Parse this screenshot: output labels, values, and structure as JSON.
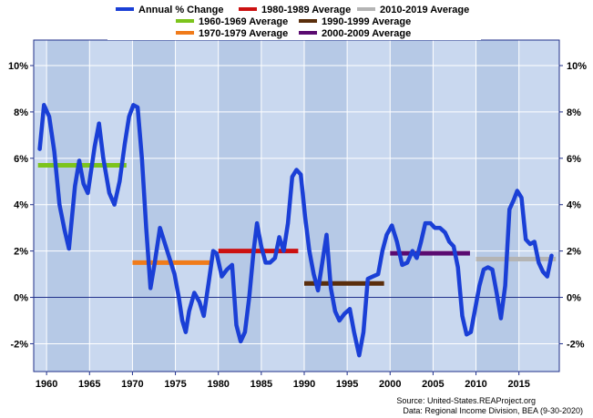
{
  "chart_data": {
    "type": "line",
    "title": "",
    "xlabel": "",
    "ylabel": "",
    "x_range": [
      1958.5,
      2019.7
    ],
    "ylim": [
      -3.2,
      11.1
    ],
    "y_ticks": [
      -2,
      0,
      2,
      4,
      6,
      8,
      10
    ],
    "y_tick_labels": [
      "-2%",
      "0%",
      "2%",
      "4%",
      "6%",
      "8%",
      "10%"
    ],
    "x_ticks": [
      1960,
      1965,
      1970,
      1975,
      1980,
      1985,
      1990,
      1995,
      2000,
      2005,
      2010,
      2015
    ],
    "x_tick_labels": [
      "1960",
      "1965",
      "1970",
      "1975",
      "1980",
      "1985",
      "1990",
      "1995",
      "2000",
      "2005",
      "2010",
      "2015"
    ],
    "grid": true,
    "legend_position": "top",
    "legend": [
      {
        "label": "Annual % Change",
        "color": "#1a3fd6"
      },
      {
        "label": "1980-1989 Average",
        "color": "#cc1111"
      },
      {
        "label": "2010-2019 Average",
        "color": "#b4b4b4"
      },
      {
        "label": "1960-1969 Average",
        "color": "#7cc41c"
      },
      {
        "label": "1990-1999 Average",
        "color": "#5a2e0c"
      },
      {
        "label": "1970-1979 Average",
        "color": "#f07b1a"
      },
      {
        "label": "2000-2009 Average",
        "color": "#5a0a70"
      }
    ],
    "series": [
      {
        "name": "Annual % Change",
        "color": "#1a3fd6",
        "points": [
          [
            1959.2,
            6.4
          ],
          [
            1959.7,
            8.3
          ],
          [
            1960.3,
            7.8
          ],
          [
            1960.9,
            6.3
          ],
          [
            1961.5,
            4.0
          ],
          [
            1962.1,
            2.9
          ],
          [
            1962.6,
            2.1
          ],
          [
            1963.3,
            4.8
          ],
          [
            1963.8,
            5.9
          ],
          [
            1964.3,
            4.9
          ],
          [
            1964.8,
            4.5
          ],
          [
            1965.6,
            6.5
          ],
          [
            1966.1,
            7.5
          ],
          [
            1966.6,
            6.0
          ],
          [
            1967.3,
            4.5
          ],
          [
            1967.9,
            4.0
          ],
          [
            1968.5,
            5.0
          ],
          [
            1969.1,
            6.6
          ],
          [
            1969.6,
            7.8
          ],
          [
            1970.1,
            8.3
          ],
          [
            1970.6,
            8.2
          ],
          [
            1971.1,
            6.0
          ],
          [
            1971.6,
            3.0
          ],
          [
            1972.1,
            0.4
          ],
          [
            1972.6,
            1.5
          ],
          [
            1973.2,
            3.0
          ],
          [
            1973.8,
            2.3
          ],
          [
            1974.3,
            1.7
          ],
          [
            1974.9,
            1.0
          ],
          [
            1975.4,
            0.0
          ],
          [
            1975.8,
            -1.0
          ],
          [
            1976.2,
            -1.5
          ],
          [
            1976.6,
            -0.6
          ],
          [
            1977.2,
            0.2
          ],
          [
            1977.8,
            -0.2
          ],
          [
            1978.3,
            -0.8
          ],
          [
            1978.9,
            0.7
          ],
          [
            1979.4,
            2.0
          ],
          [
            1979.8,
            1.9
          ],
          [
            1980.4,
            0.9
          ],
          [
            1981.0,
            1.2
          ],
          [
            1981.6,
            1.4
          ],
          [
            1982.1,
            -1.2
          ],
          [
            1982.6,
            -1.9
          ],
          [
            1983.1,
            -1.5
          ],
          [
            1983.6,
            0.0
          ],
          [
            1984.1,
            2.0
          ],
          [
            1984.5,
            3.2
          ],
          [
            1985.0,
            2.2
          ],
          [
            1985.5,
            1.5
          ],
          [
            1986.0,
            1.5
          ],
          [
            1986.6,
            1.7
          ],
          [
            1987.1,
            2.6
          ],
          [
            1987.6,
            2.0
          ],
          [
            1988.1,
            3.2
          ],
          [
            1988.6,
            5.2
          ],
          [
            1989.1,
            5.5
          ],
          [
            1989.6,
            5.3
          ],
          [
            1990.1,
            3.5
          ],
          [
            1990.6,
            2.0
          ],
          [
            1991.1,
            1.0
          ],
          [
            1991.6,
            0.3
          ],
          [
            1992.1,
            1.5
          ],
          [
            1992.6,
            2.7
          ],
          [
            1993.1,
            0.4
          ],
          [
            1993.6,
            -0.6
          ],
          [
            1994.1,
            -1.0
          ],
          [
            1994.7,
            -0.7
          ],
          [
            1995.3,
            -0.5
          ],
          [
            1995.8,
            -1.5
          ],
          [
            1996.4,
            -2.5
          ],
          [
            1996.9,
            -1.5
          ],
          [
            1997.4,
            0.8
          ],
          [
            1998.0,
            0.9
          ],
          [
            1998.6,
            1.0
          ],
          [
            1999.1,
            2.0
          ],
          [
            1999.6,
            2.7
          ],
          [
            2000.2,
            3.1
          ],
          [
            2000.8,
            2.4
          ],
          [
            2001.4,
            1.4
          ],
          [
            2002.0,
            1.5
          ],
          [
            2002.6,
            2.0
          ],
          [
            2003.1,
            1.7
          ],
          [
            2003.6,
            2.4
          ],
          [
            2004.1,
            3.2
          ],
          [
            2004.7,
            3.2
          ],
          [
            2005.2,
            3.0
          ],
          [
            2005.8,
            3.0
          ],
          [
            2006.4,
            2.8
          ],
          [
            2006.9,
            2.4
          ],
          [
            2007.4,
            2.2
          ],
          [
            2007.9,
            1.3
          ],
          [
            2008.4,
            -0.8
          ],
          [
            2008.9,
            -1.6
          ],
          [
            2009.4,
            -1.5
          ],
          [
            2009.9,
            -0.5
          ],
          [
            2010.4,
            0.5
          ],
          [
            2010.9,
            1.2
          ],
          [
            2011.4,
            1.3
          ],
          [
            2011.9,
            1.2
          ],
          [
            2012.4,
            0.2
          ],
          [
            2012.9,
            -0.9
          ],
          [
            2013.4,
            0.5
          ],
          [
            2013.9,
            3.8
          ],
          [
            2014.4,
            4.2
          ],
          [
            2014.8,
            4.6
          ],
          [
            2015.3,
            4.3
          ],
          [
            2015.8,
            2.5
          ],
          [
            2016.3,
            2.3
          ],
          [
            2016.8,
            2.4
          ],
          [
            2017.3,
            1.5
          ],
          [
            2017.8,
            1.1
          ],
          [
            2018.3,
            0.9
          ],
          [
            2018.8,
            1.8
          ]
        ]
      }
    ],
    "averages": [
      {
        "name": "1960-1969 Average",
        "color": "#7cc41c",
        "x": [
          1959.0,
          1969.3
        ],
        "y": 5.7
      },
      {
        "name": "1970-1979 Average",
        "color": "#f07b1a",
        "x": [
          1970.0,
          1979.3
        ],
        "y": 1.5
      },
      {
        "name": "1980-1989 Average",
        "color": "#cc1111",
        "x": [
          1980.0,
          1989.3
        ],
        "y": 2.0
      },
      {
        "name": "1990-1999 Average",
        "color": "#5a2e0c",
        "x": [
          1990.0,
          1999.3
        ],
        "y": 0.6
      },
      {
        "name": "2000-2009 Average",
        "color": "#5a0a70",
        "x": [
          2000.0,
          2009.3
        ],
        "y": 1.9
      },
      {
        "name": "2010-2019 Average",
        "color": "#b4b4b4",
        "x": [
          2010.0,
          2019.3
        ],
        "y": 1.65
      }
    ],
    "bands": [
      [
        1960,
        1965
      ],
      [
        1970,
        1975
      ],
      [
        1980,
        1985
      ],
      [
        1990,
        1995
      ],
      [
        2000,
        2005
      ],
      [
        2010,
        2015
      ]
    ],
    "colors": {
      "plot_bg": "#c9d8ef",
      "band": "#b6c9e6",
      "gridline": "#ffffff",
      "frame": "#1f2f8a",
      "zero_line": "#1f2f8a"
    }
  },
  "source_lines": [
    "Source: United-States.REAProject.org",
    "Data: Regional Income Division, BEA (9-30-2020)"
  ]
}
